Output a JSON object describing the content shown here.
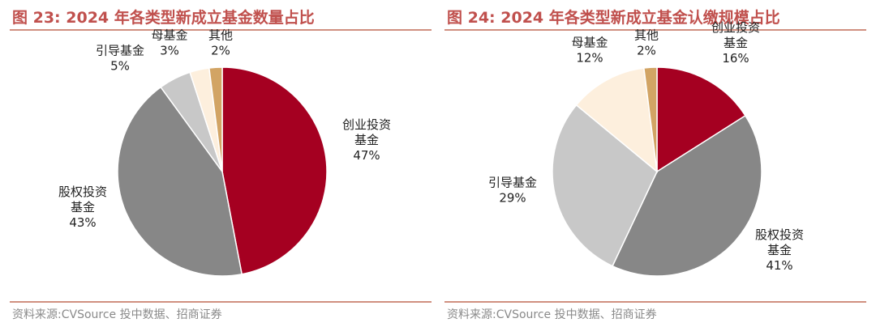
{
  "colors": {
    "title": "#c0504d",
    "rule": "#d09080",
    "source": "#8a8a8a",
    "slices": [
      "#a50021",
      "#878787",
      "#c8c8c8",
      "#fdefdd",
      "#d2a464"
    ]
  },
  "chart_data": [
    {
      "type": "pie",
      "title": "图 23:  2024 年各类型新成立基金数量占比",
      "source": "资料来源:CVSource 投中数据、招商证券",
      "slices": [
        {
          "label_lines": [
            "创业投资",
            "基金"
          ],
          "value_text": "47%",
          "value": 47
        },
        {
          "label_lines": [
            "股权投资",
            "基金"
          ],
          "value_text": "43%",
          "value": 43
        },
        {
          "label_lines": [
            "引导基金"
          ],
          "value_text": "5%",
          "value": 5
        },
        {
          "label_lines": [
            "母基金"
          ],
          "value_text": "3%",
          "value": 3
        },
        {
          "label_lines": [
            "其他"
          ],
          "value_text": "2%",
          "value": 2
        }
      ]
    },
    {
      "type": "pie",
      "title": "图 24:  2024 年各类型新成立基金认缴规模占比",
      "source": "资料来源:CVSource 投中数据、招商证券",
      "slices": [
        {
          "label_lines": [
            "创业投资",
            "基金"
          ],
          "value_text": "16%",
          "value": 16
        },
        {
          "label_lines": [
            "股权投资",
            "基金"
          ],
          "value_text": "41%",
          "value": 41
        },
        {
          "label_lines": [
            "引导基金"
          ],
          "value_text": "29%",
          "value": 29
        },
        {
          "label_lines": [
            "母基金"
          ],
          "value_text": "12%",
          "value": 12
        },
        {
          "label_lines": [
            "其他"
          ],
          "value_text": "2%",
          "value": 2
        }
      ]
    }
  ]
}
